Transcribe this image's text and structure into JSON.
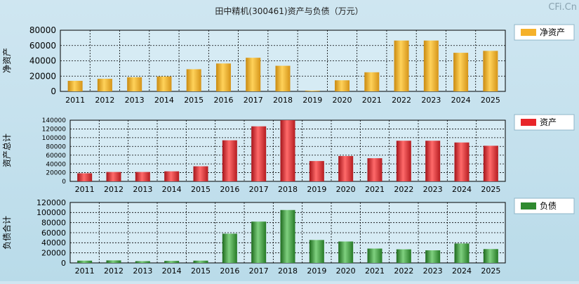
{
  "title": "田中精机(300461)资产与负债（万元）",
  "watermark": "CFi.Cn",
  "chart_data": [
    {
      "type": "bar",
      "ylabel": "净资产",
      "ylim": [
        0,
        80000
      ],
      "yticks": [
        0,
        20000,
        40000,
        60000,
        80000
      ],
      "categories": [
        "2011",
        "2012",
        "2013",
        "2014",
        "2015",
        "2016",
        "2017",
        "2018",
        "2019",
        "2020",
        "2021",
        "2022",
        "2023",
        "2024",
        "2025"
      ],
      "series": [
        {
          "name": "净资产",
          "color": "#f5b12a",
          "values": [
            13800,
            16500,
            18500,
            19500,
            29000,
            36500,
            44000,
            33500,
            1000,
            14500,
            25000,
            66500,
            66500,
            50500,
            53000
          ]
        }
      ],
      "legend": "top-right",
      "grid": true
    },
    {
      "type": "bar",
      "ylabel": "资产总计",
      "ylim": [
        0,
        140000
      ],
      "yticks": [
        0,
        20000,
        40000,
        60000,
        80000,
        100000,
        120000,
        140000
      ],
      "categories": [
        "2011",
        "2012",
        "2013",
        "2014",
        "2015",
        "2016",
        "2017",
        "2018",
        "2019",
        "2020",
        "2021",
        "2022",
        "2023",
        "2024",
        "2025"
      ],
      "series": [
        {
          "name": "资产",
          "color": "#e8262a",
          "values": [
            18500,
            21500,
            21500,
            23000,
            34500,
            94000,
            126000,
            140000,
            46500,
            58000,
            53000,
            93000,
            93000,
            89000,
            81500
          ]
        }
      ],
      "legend": "top-right",
      "grid": true
    },
    {
      "type": "bar",
      "ylabel": "负债合计",
      "ylim": [
        0,
        120000
      ],
      "yticks": [
        0,
        20000,
        40000,
        60000,
        80000,
        100000,
        120000
      ],
      "categories": [
        "2011",
        "2012",
        "2013",
        "2014",
        "2015",
        "2016",
        "2017",
        "2018",
        "2019",
        "2020",
        "2021",
        "2022",
        "2023",
        "2024",
        "2025"
      ],
      "series": [
        {
          "name": "负债",
          "color": "#2f8a2f",
          "values": [
            4500,
            5000,
            3500,
            4000,
            4500,
            58000,
            82000,
            105000,
            45500,
            42500,
            28500,
            27000,
            25000,
            38500,
            27500
          ]
        }
      ],
      "legend": "top-right",
      "grid": true
    }
  ]
}
